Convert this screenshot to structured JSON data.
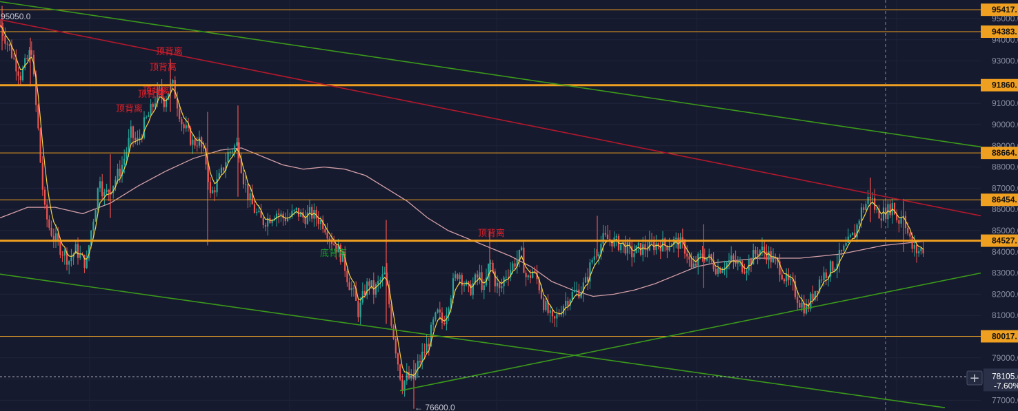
{
  "chart_data": {
    "type": "candlestick",
    "y_axis": {
      "ticks": [
        "95000.0",
        "94000.0",
        "93000.0",
        "92000.0",
        "91000.0",
        "90000.0",
        "89000.0",
        "88000.0",
        "87000.0",
        "86000.0",
        "85000.0",
        "84000.0",
        "83000.0",
        "82000.0",
        "81000.0",
        "80000.0",
        "79000.0",
        "78000.0",
        "77000.0"
      ],
      "ylim": [
        76800,
        95900
      ]
    },
    "price_lines": [
      {
        "value": 95417,
        "label": "95417.",
        "color": "#f0a020",
        "weight": "thin"
      },
      {
        "value": 94383,
        "label": "94383.",
        "color": "#f0a020",
        "weight": "thin"
      },
      {
        "value": 91860,
        "label": "91860.",
        "color": "#f0a020",
        "weight": "thick"
      },
      {
        "value": 88664,
        "label": "88664.",
        "color": "#f0a020",
        "weight": "thin"
      },
      {
        "value": 86454,
        "label": "86454.",
        "color": "#f0a020",
        "weight": "thin"
      },
      {
        "value": 84527,
        "label": "84527.",
        "color": "#f0a020",
        "weight": "thick"
      },
      {
        "value": 80017,
        "label": "80017.",
        "color": "#f0a020",
        "weight": "thin"
      }
    ],
    "current_price": {
      "value": 78105,
      "label": "78105.(",
      "change": "-7.60%"
    },
    "extremes": [
      {
        "label": "95050.0",
        "value": 95050
      },
      {
        "label": "← 76600.0",
        "value": 76600
      }
    ],
    "annotations": [
      {
        "text": "顶背离",
        "color": "#e8202a"
      },
      {
        "text": "顶背离",
        "color": "#e8202a"
      },
      {
        "text": "顶背离",
        "color": "#e8202a"
      },
      {
        "text": "顶背离",
        "color": "#e8202a"
      },
      {
        "text": "顶背离",
        "color": "#e8202a"
      },
      {
        "text": "顶背离",
        "color": "#e8202a"
      },
      {
        "text": "底背离",
        "color": "#18a030"
      }
    ],
    "trendlines": [
      {
        "color": "#3a9a1a",
        "from": [
          0,
          95800
        ],
        "to": [
          1422,
          88950
        ]
      },
      {
        "color": "#b3182c",
        "from": [
          0,
          94950
        ],
        "to": [
          1422,
          85700
        ]
      },
      {
        "color": "#3a9a1a",
        "from": [
          0,
          82950
        ],
        "to": [
          1370,
          76650
        ]
      },
      {
        "color": "#3a9a1a",
        "from": [
          580,
          77450
        ],
        "to": [
          1422,
          83000
        ]
      }
    ],
    "series_colors": {
      "up": "#26a69a",
      "down": "#ef5350",
      "ma_fast": "#f5d547",
      "ma_slow": "#d4a0a8"
    },
    "close_path": [
      [
        0,
        94700
      ],
      [
        10,
        93900
      ],
      [
        20,
        93100
      ],
      [
        30,
        92300
      ],
      [
        40,
        93100
      ],
      [
        46,
        93600
      ],
      [
        50,
        91600
      ],
      [
        55,
        89900
      ],
      [
        60,
        87600
      ],
      [
        65,
        85900
      ],
      [
        72,
        85100
      ],
      [
        80,
        84600
      ],
      [
        90,
        84050
      ],
      [
        100,
        83600
      ],
      [
        110,
        84100
      ],
      [
        120,
        83600
      ],
      [
        126,
        83450
      ],
      [
        130,
        84600
      ],
      [
        138,
        86100
      ],
      [
        145,
        87600
      ],
      [
        150,
        86600
      ],
      [
        158,
        86900
      ],
      [
        165,
        87300
      ],
      [
        175,
        87900
      ],
      [
        182,
        88600
      ],
      [
        190,
        89600
      ],
      [
        198,
        89100
      ],
      [
        205,
        89600
      ],
      [
        210,
        90100
      ],
      [
        218,
        90600
      ],
      [
        224,
        91100
      ],
      [
        230,
        91600
      ],
      [
        238,
        91100
      ],
      [
        244,
        91600
      ],
      [
        250,
        91900
      ],
      [
        258,
        90900
      ],
      [
        265,
        89900
      ],
      [
        272,
        89600
      ],
      [
        280,
        89100
      ],
      [
        288,
        89300
      ],
      [
        295,
        88600
      ],
      [
        300,
        88100
      ],
      [
        305,
        86600
      ],
      [
        312,
        87100
      ],
      [
        320,
        87600
      ],
      [
        330,
        88600
      ],
      [
        338,
        88900
      ],
      [
        345,
        89100
      ],
      [
        352,
        87600
      ],
      [
        360,
        86600
      ],
      [
        370,
        85900
      ],
      [
        380,
        85400
      ],
      [
        390,
        85600
      ],
      [
        400,
        85900
      ],
      [
        410,
        85600
      ],
      [
        420,
        85650
      ],
      [
        430,
        85900
      ],
      [
        440,
        85600
      ],
      [
        450,
        85800
      ],
      [
        460,
        85600
      ],
      [
        470,
        85300
      ],
      [
        480,
        84600
      ],
      [
        490,
        84100
      ],
      [
        498,
        83600
      ],
      [
        505,
        82600
      ],
      [
        512,
        82100
      ],
      [
        520,
        81100
      ],
      [
        528,
        82100
      ],
      [
        535,
        82600
      ],
      [
        542,
        82100
      ],
      [
        550,
        82600
      ],
      [
        558,
        82900
      ],
      [
        564,
        81600
      ],
      [
        568,
        80600
      ],
      [
        573,
        79600
      ],
      [
        578,
        78600
      ],
      [
        583,
        77700
      ],
      [
        590,
        78100
      ],
      [
        598,
        77900
      ],
      [
        605,
        78600
      ],
      [
        612,
        79100
      ],
      [
        620,
        79600
      ],
      [
        628,
        80600
      ],
      [
        635,
        81100
      ],
      [
        642,
        80600
      ],
      [
        650,
        81600
      ],
      [
        658,
        82600
      ],
      [
        665,
        83100
      ],
      [
        672,
        82600
      ],
      [
        680,
        82100
      ],
      [
        688,
        82600
      ],
      [
        695,
        82900
      ],
      [
        702,
        82100
      ],
      [
        710,
        83600
      ],
      [
        718,
        82600
      ],
      [
        725,
        82100
      ],
      [
        732,
        82900
      ],
      [
        740,
        83200
      ],
      [
        748,
        83600
      ],
      [
        756,
        83900
      ],
      [
        764,
        82600
      ],
      [
        772,
        83100
      ],
      [
        780,
        82600
      ],
      [
        788,
        81600
      ],
      [
        795,
        81100
      ],
      [
        802,
        80600
      ],
      [
        810,
        81100
      ],
      [
        818,
        81600
      ],
      [
        826,
        81900
      ],
      [
        834,
        82100
      ],
      [
        842,
        82200
      ],
      [
        850,
        82600
      ],
      [
        858,
        83600
      ],
      [
        866,
        84100
      ],
      [
        875,
        84600
      ],
      [
        885,
        84600
      ],
      [
        895,
        84400
      ],
      [
        905,
        84300
      ],
      [
        915,
        83900
      ],
      [
        925,
        84100
      ],
      [
        935,
        84200
      ],
      [
        945,
        84300
      ],
      [
        955,
        84400
      ],
      [
        965,
        84300
      ],
      [
        975,
        84500
      ],
      [
        985,
        84400
      ],
      [
        995,
        84100
      ],
      [
        1003,
        83100
      ],
      [
        1012,
        83600
      ],
      [
        1020,
        83900
      ],
      [
        1030,
        83600
      ],
      [
        1040,
        83200
      ],
      [
        1050,
        83400
      ],
      [
        1060,
        83600
      ],
      [
        1070,
        83400
      ],
      [
        1080,
        83300
      ],
      [
        1090,
        83700
      ],
      [
        1100,
        84100
      ],
      [
        1110,
        84000
      ],
      [
        1120,
        83600
      ],
      [
        1130,
        83300
      ],
      [
        1140,
        82600
      ],
      [
        1150,
        82300
      ],
      [
        1160,
        81600
      ],
      [
        1170,
        81300
      ],
      [
        1180,
        82100
      ],
      [
        1190,
        82800
      ],
      [
        1200,
        83100
      ],
      [
        1210,
        83400
      ],
      [
        1220,
        83900
      ],
      [
        1230,
        84400
      ],
      [
        1240,
        84900
      ],
      [
        1248,
        85900
      ],
      [
        1256,
        86300
      ],
      [
        1262,
        86700
      ],
      [
        1270,
        85900
      ],
      [
        1278,
        85800
      ],
      [
        1286,
        85900
      ],
      [
        1294,
        86200
      ],
      [
        1302,
        85400
      ],
      [
        1310,
        85900
      ],
      [
        1316,
        84900
      ],
      [
        1322,
        84200
      ],
      [
        1330,
        84000
      ],
      [
        1336,
        84100
      ],
      [
        1340,
        84200
      ]
    ],
    "slow_ma_path": [
      [
        0,
        85600
      ],
      [
        40,
        86100
      ],
      [
        80,
        86100
      ],
      [
        120,
        85800
      ],
      [
        160,
        86300
      ],
      [
        200,
        87100
      ],
      [
        240,
        87800
      ],
      [
        280,
        88400
      ],
      [
        320,
        88800
      ],
      [
        350,
        88900
      ],
      [
        380,
        88500
      ],
      [
        410,
        88100
      ],
      [
        440,
        87900
      ],
      [
        470,
        88000
      ],
      [
        500,
        87900
      ],
      [
        530,
        87600
      ],
      [
        560,
        87000
      ],
      [
        590,
        86400
      ],
      [
        620,
        85600
      ],
      [
        650,
        85000
      ],
      [
        680,
        84600
      ],
      [
        710,
        84200
      ],
      [
        740,
        83800
      ],
      [
        770,
        83300
      ],
      [
        800,
        82600
      ],
      [
        830,
        82200
      ],
      [
        860,
        81900
      ],
      [
        890,
        82000
      ],
      [
        920,
        82200
      ],
      [
        950,
        82500
      ],
      [
        980,
        82900
      ],
      [
        1010,
        83300
      ],
      [
        1040,
        83500
      ],
      [
        1070,
        83600
      ],
      [
        1100,
        83700
      ],
      [
        1130,
        83700
      ],
      [
        1160,
        83700
      ],
      [
        1190,
        83800
      ],
      [
        1220,
        83900
      ],
      [
        1250,
        84100
      ],
      [
        1280,
        84300
      ],
      [
        1310,
        84400
      ],
      [
        1340,
        84500
      ]
    ],
    "extra_wicks": [
      [
        3,
        95600,
        93500
      ],
      [
        44,
        94100,
        91800
      ],
      [
        160,
        88600,
        85600
      ],
      [
        247,
        93100,
        90600
      ],
      [
        301,
        90600,
        84300
      ],
      [
        345,
        90900,
        86600
      ],
      [
        560,
        85500,
        80600
      ],
      [
        582,
        77200,
        77200
      ],
      [
        600,
        78900,
        76600
      ],
      [
        710,
        85000,
        82100
      ],
      [
        866,
        85700,
        83800
      ],
      [
        1020,
        85300,
        82300
      ],
      [
        1262,
        87500,
        85400
      ],
      [
        1310,
        86500,
        84000
      ]
    ]
  },
  "ui": {
    "add_button_label": "+"
  }
}
